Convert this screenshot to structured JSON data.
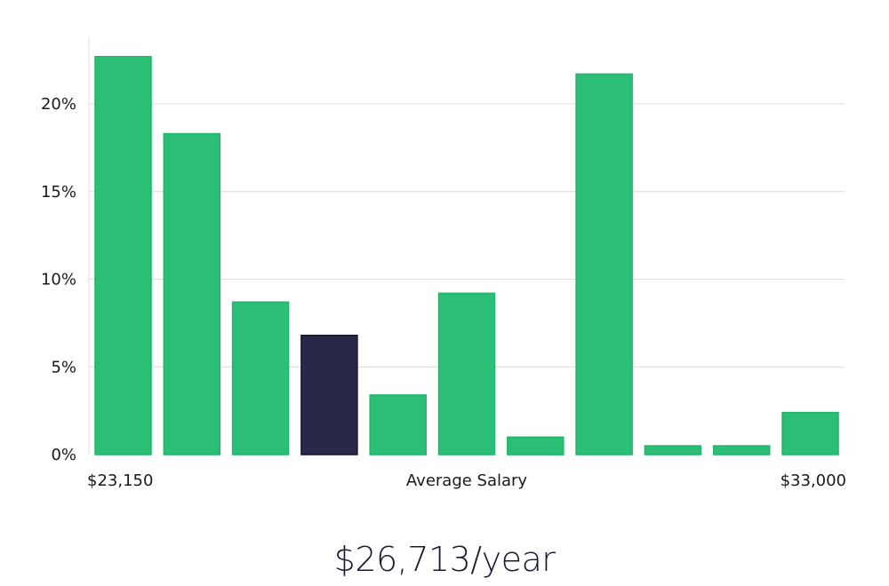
{
  "chart_data": {
    "type": "bar",
    "title": "",
    "xlabel": "Average Salary",
    "ylabel": "",
    "x_start_label": "$23,150",
    "x_end_label": "$33,000",
    "ylim": [
      0,
      23.5
    ],
    "y_ticks": [
      0,
      5,
      10,
      15,
      20
    ],
    "y_tick_labels": [
      "0%",
      "5%",
      "10%",
      "15%",
      "20%"
    ],
    "grid": true,
    "highlight_index": 3,
    "colors": {
      "bar": "#2bbf76",
      "bar_border": "#22b36c",
      "highlight": "#2a2848",
      "highlight_border": "#15142a",
      "grid": "#dcdcdc",
      "axis": "#e0e0e0"
    },
    "values": [
      22.7,
      18.3,
      8.7,
      6.8,
      3.4,
      9.2,
      1.0,
      21.7,
      0.5,
      0.5,
      2.4
    ]
  },
  "summary": {
    "salary_text": "$26,713/year"
  }
}
